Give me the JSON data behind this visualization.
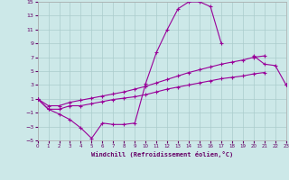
{
  "xlabel": "Windchill (Refroidissement éolien,°C)",
  "bg_color": "#cce8e8",
  "grid_color": "#aacccc",
  "line_color": "#990099",
  "xlim": [
    0,
    23
  ],
  "ylim": [
    -5,
    15
  ],
  "xticks": [
    0,
    1,
    2,
    3,
    4,
    5,
    6,
    7,
    8,
    9,
    10,
    11,
    12,
    13,
    14,
    15,
    16,
    17,
    18,
    19,
    20,
    21,
    22,
    23
  ],
  "yticks": [
    -5,
    -3,
    -1,
    1,
    3,
    5,
    7,
    9,
    11,
    13,
    15
  ],
  "line1_x": [
    0,
    1,
    2,
    3,
    4,
    5,
    6,
    7,
    8,
    9,
    10,
    11,
    12,
    13,
    14,
    15,
    16,
    17,
    18,
    19,
    20,
    21,
    22,
    23
  ],
  "line1_y": [
    1.0,
    -0.5,
    -1.2,
    -2.0,
    -3.2,
    -4.7,
    -2.5,
    -2.7,
    -2.7,
    -2.5,
    3.2,
    7.7,
    11.0,
    14.0,
    15.0,
    15.0,
    14.3,
    9.0,
    null,
    null,
    7.2,
    6.0,
    5.8,
    3.0
  ],
  "line2_x": [
    0,
    1,
    2,
    3,
    4,
    5,
    6,
    7,
    8,
    9,
    10,
    11,
    12,
    13,
    14,
    15,
    16,
    17,
    18,
    19,
    20,
    21,
    22,
    23
  ],
  "line2_y": [
    1.0,
    0.0,
    0.0,
    0.5,
    0.8,
    1.1,
    1.4,
    1.7,
    2.0,
    2.4,
    2.8,
    3.3,
    3.8,
    4.3,
    4.8,
    5.2,
    5.6,
    6.0,
    6.3,
    6.6,
    7.0,
    7.2,
    null,
    3.0
  ],
  "line3_x": [
    0,
    1,
    2,
    3,
    4,
    5,
    6,
    7,
    8,
    9,
    10,
    11,
    12,
    13,
    14,
    15,
    16,
    17,
    18,
    19,
    20,
    21,
    22,
    23
  ],
  "line3_y": [
    1.0,
    -0.5,
    -0.5,
    0.0,
    0.0,
    0.3,
    0.6,
    0.9,
    1.1,
    1.3,
    1.6,
    2.0,
    2.4,
    2.7,
    3.0,
    3.3,
    3.6,
    3.9,
    4.1,
    4.3,
    4.6,
    4.8,
    null,
    3.0
  ]
}
